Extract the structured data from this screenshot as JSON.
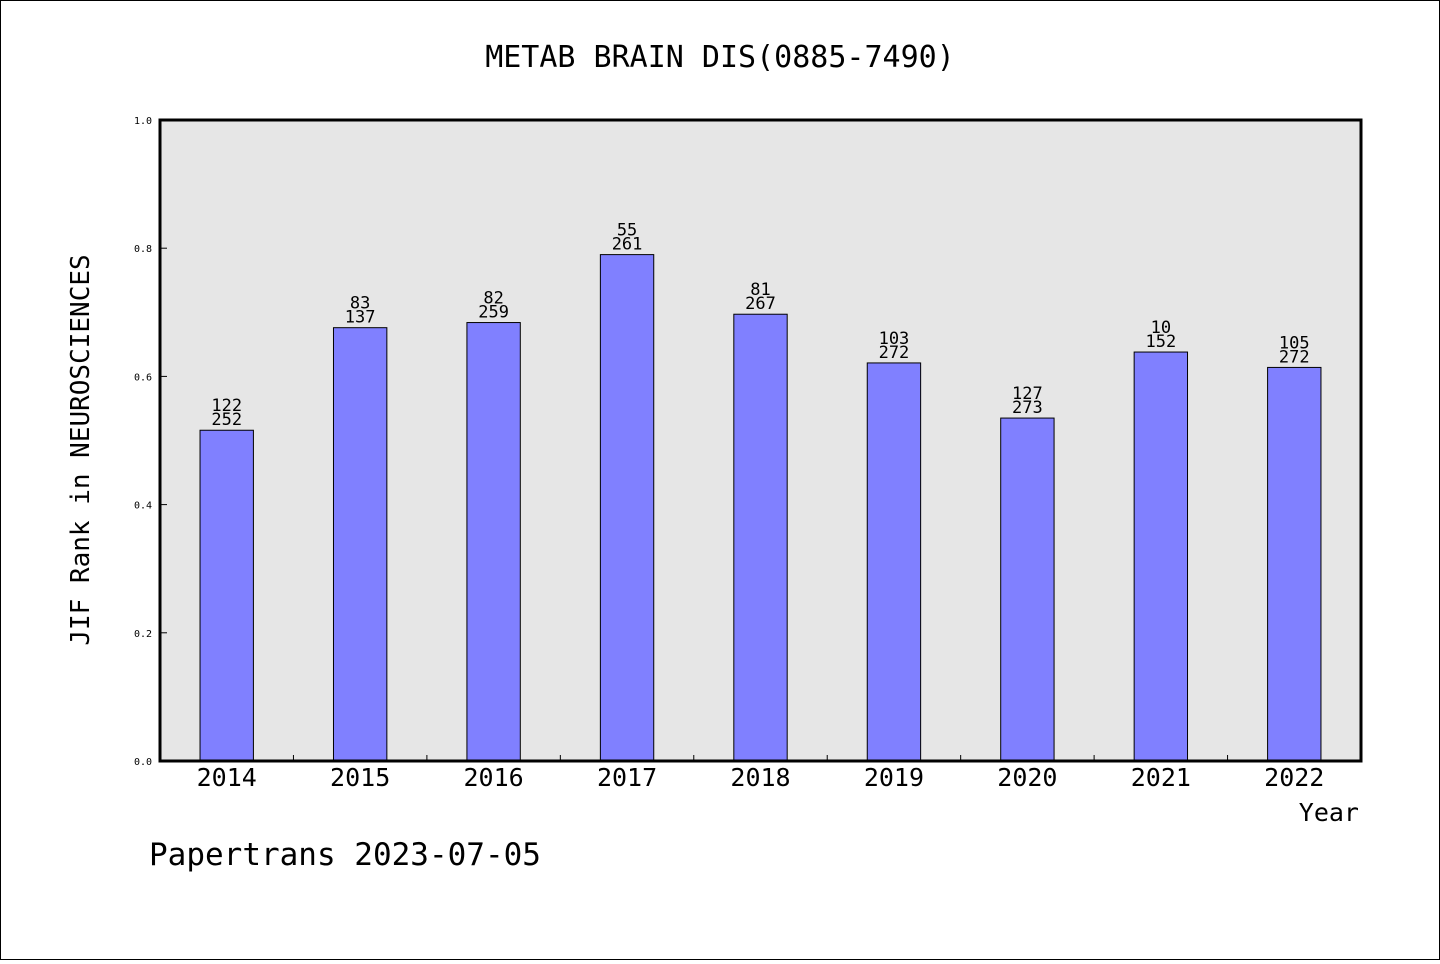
{
  "chart_data": {
    "type": "bar",
    "title": "METAB BRAIN DIS(0885-7490)",
    "ylabel": "JIF Rank in NEUROSCIENCES",
    "xlabel": "Year",
    "ylim": [
      0,
      1.0
    ],
    "yticks": [
      "0.0",
      "0.2",
      "0.4",
      "0.6",
      "0.8",
      "1.0"
    ],
    "grid": false,
    "bar_color": "#8080ff",
    "plot_background": "#e6e6e6",
    "categories": [
      "2014",
      "2015",
      "2016",
      "2017",
      "2018",
      "2019",
      "2020",
      "2021",
      "2022"
    ],
    "values": [
      0.516,
      0.676,
      0.684,
      0.79,
      0.697,
      0.621,
      0.535,
      0.638,
      0.614
    ],
    "rank_labels": [
      "122",
      "83",
      "82",
      "55",
      "81",
      "103",
      "127",
      "10",
      "105"
    ],
    "total_labels": [
      "252",
      "137",
      "259",
      "261",
      "267",
      "272",
      "273",
      "152",
      "272"
    ]
  },
  "footer": "Papertrans 2023-07-05"
}
